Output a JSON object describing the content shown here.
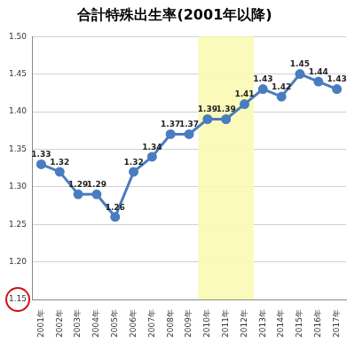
{
  "chart_data": {
    "type": "line",
    "title": "合計特殊出生率(2001年以降)",
    "categories": [
      "2001年",
      "2002年",
      "2003年",
      "2004年",
      "2005年",
      "2006年",
      "2007年",
      "2008年",
      "2009年",
      "2010年",
      "2011年",
      "2012年",
      "2013年",
      "2014年",
      "2015年",
      "2016年",
      "2017年"
    ],
    "values": [
      1.33,
      1.32,
      1.29,
      1.29,
      1.26,
      1.32,
      1.34,
      1.37,
      1.37,
      1.39,
      1.39,
      1.41,
      1.43,
      1.42,
      1.45,
      1.44,
      1.43
    ],
    "color": "#4a7cc0",
    "marker": "circle",
    "ylim": [
      1.15,
      1.5
    ],
    "yticks": [
      {
        "value": 1.15,
        "label": "1.15"
      },
      {
        "value": 1.2,
        "label": "1.20"
      },
      {
        "value": 1.25,
        "label": "1.25"
      },
      {
        "value": 1.3,
        "label": "1.30"
      },
      {
        "value": 1.35,
        "label": "1.35"
      },
      {
        "value": 1.4,
        "label": "1.40"
      },
      {
        "value": 1.45,
        "label": "1.45"
      },
      {
        "value": 1.5,
        "label": "1.50"
      }
    ],
    "highlight": [
      "2010年",
      "2012年"
    ],
    "grid": true,
    "data_labels": true
  }
}
